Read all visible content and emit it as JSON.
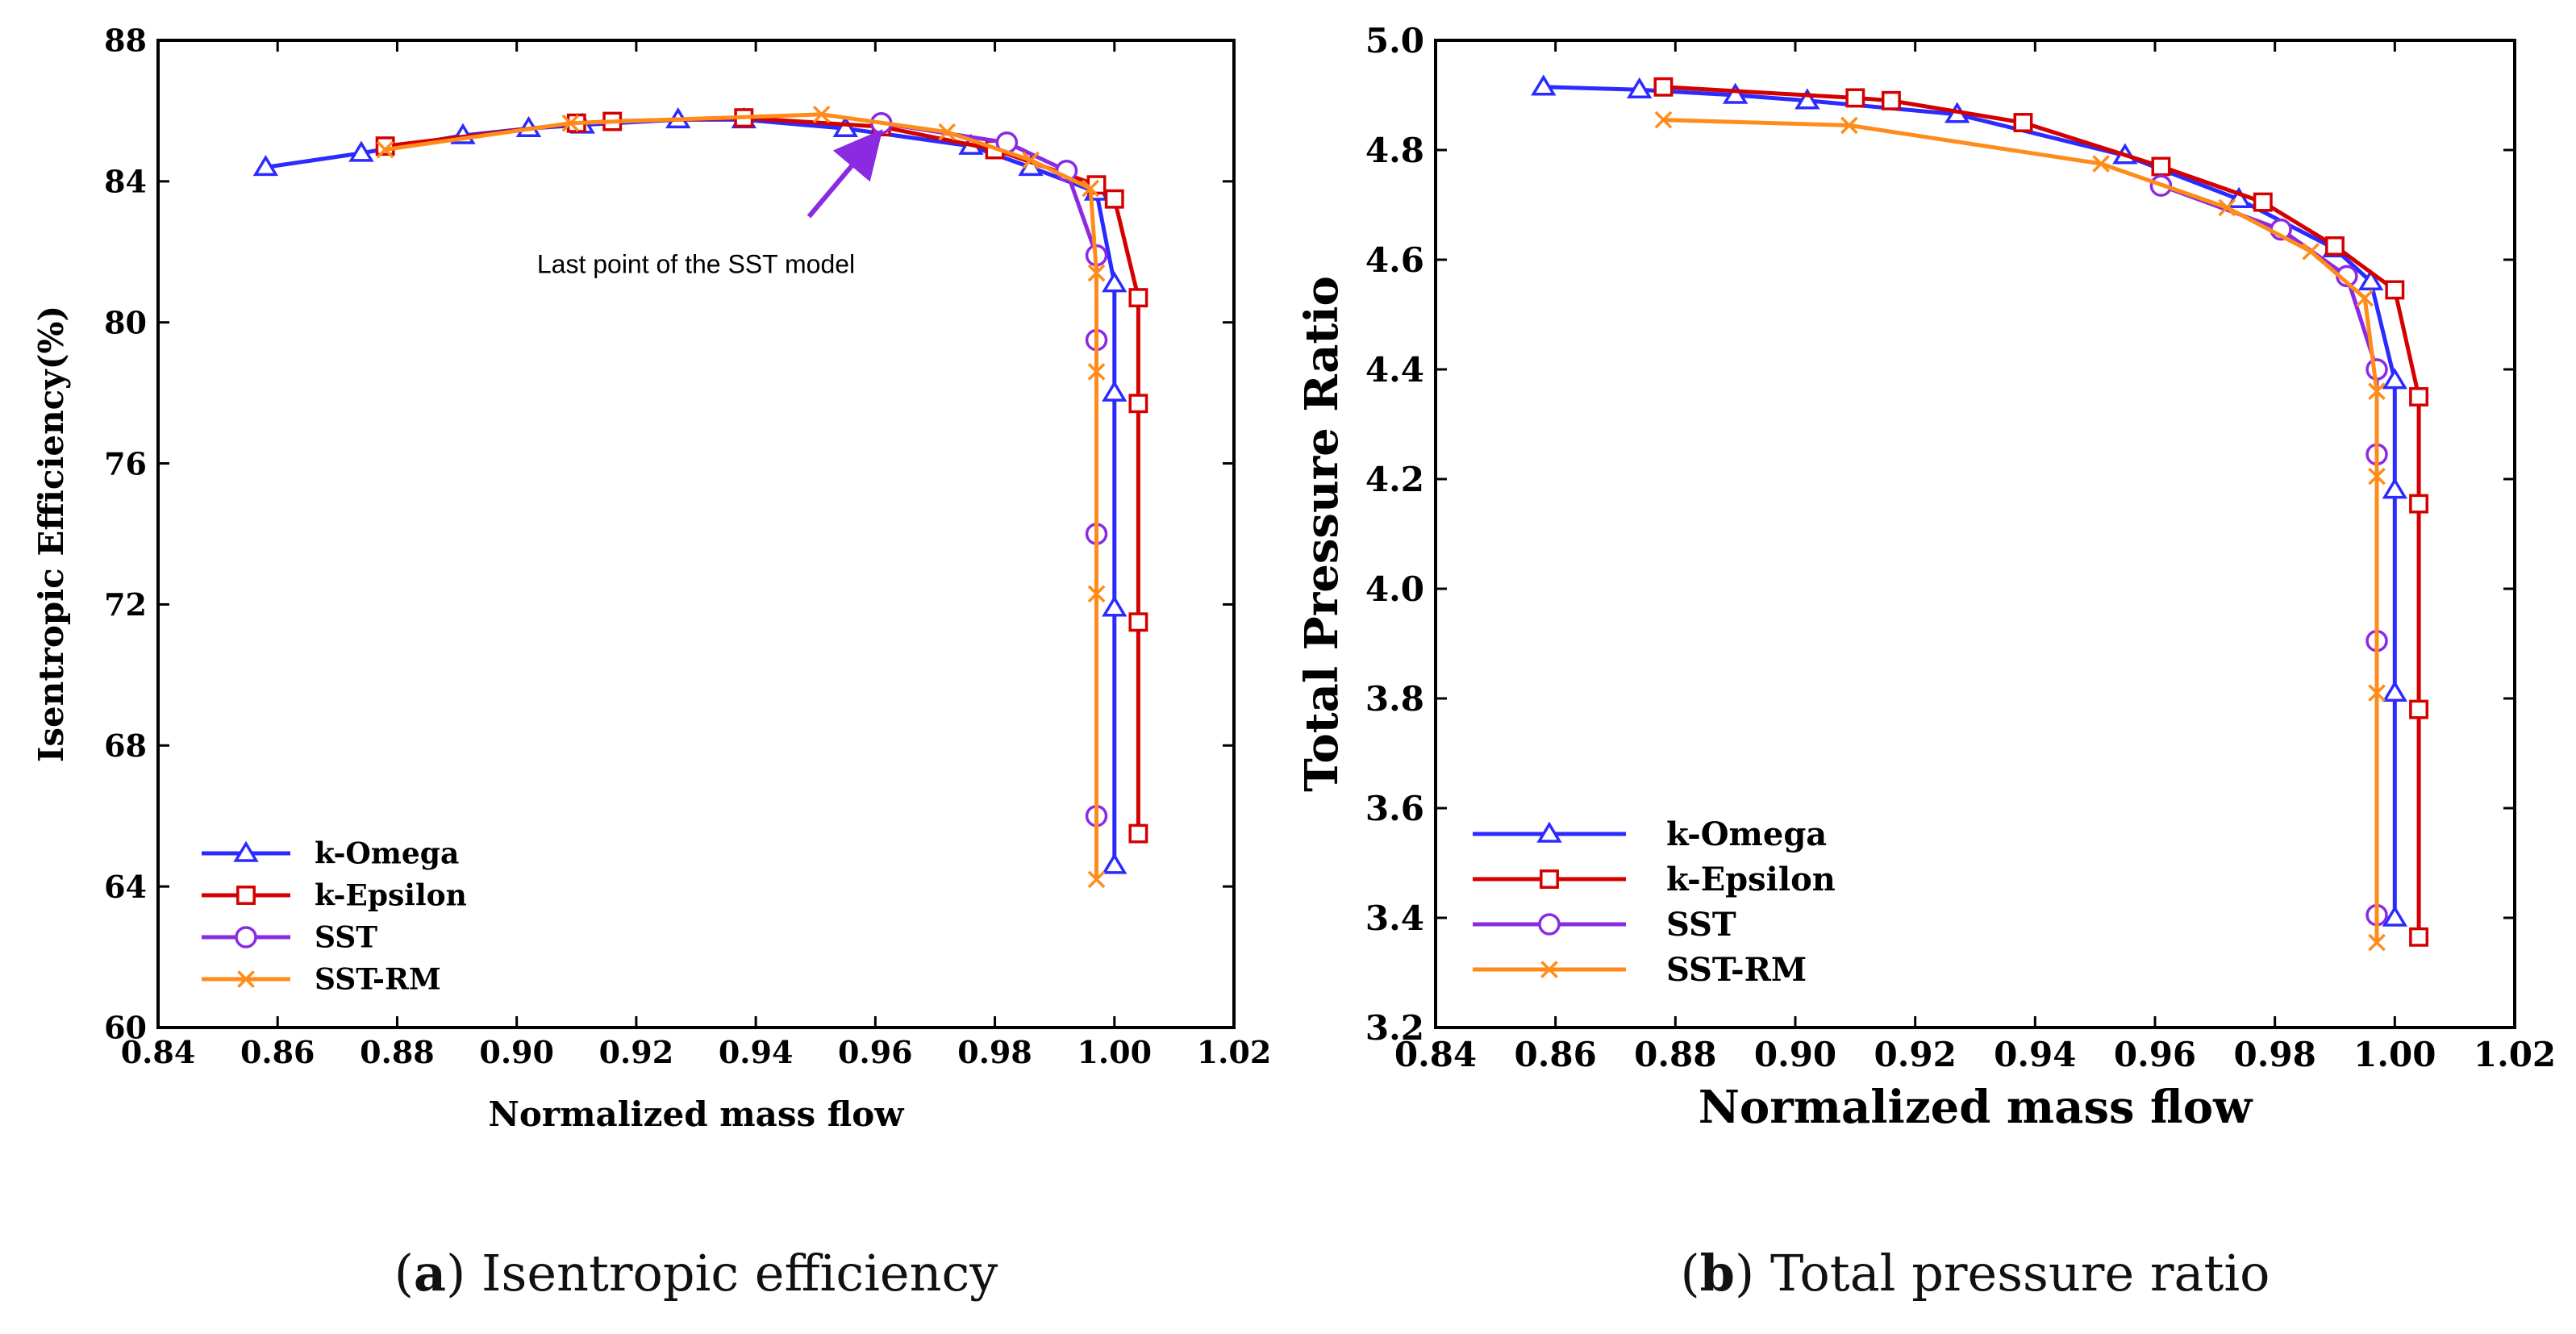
{
  "chart_data": [
    {
      "type": "line",
      "panel": "a",
      "caption_letter": "a",
      "caption_text": "Isentropic efficiency",
      "title": "",
      "xlabel": "Normalized mass flow",
      "ylabel": "Isentropic Efficiency(%)",
      "xlim": [
        0.84,
        1.02
      ],
      "ylim": [
        60,
        88
      ],
      "x_ticks": [
        "0.84",
        "0.86",
        "0.88",
        "0.90",
        "0.92",
        "0.94",
        "0.96",
        "0.98",
        "1.00",
        "1.02"
      ],
      "y_ticks": [
        "60",
        "64",
        "68",
        "72",
        "76",
        "80",
        "84",
        "88"
      ],
      "annotation": {
        "text": "Last point of the SST model",
        "target": [
          0.961,
          85.5
        ],
        "label_anchor": [
          0.93,
          81.4
        ]
      },
      "series": [
        {
          "name": "k-Omega",
          "color": "#2b2bff",
          "marker": "triangle",
          "points": [
            [
              0.858,
              84.4
            ],
            [
              0.874,
              84.8
            ],
            [
              0.891,
              85.3
            ],
            [
              0.902,
              85.5
            ],
            [
              0.911,
              85.6
            ],
            [
              0.927,
              85.75
            ],
            [
              0.938,
              85.75
            ],
            [
              0.955,
              85.5
            ],
            [
              0.976,
              85.0
            ],
            [
              0.986,
              84.4
            ],
            [
              0.997,
              83.7
            ],
            [
              1.0,
              81.1
            ],
            [
              1.0,
              78.0
            ],
            [
              1.0,
              71.9
            ],
            [
              1.0,
              64.6
            ]
          ]
        },
        {
          "name": "k-Epsilon",
          "color": "#d40000",
          "marker": "square",
          "points": [
            [
              0.878,
              85.0
            ],
            [
              0.91,
              85.65
            ],
            [
              0.916,
              85.7
            ],
            [
              0.938,
              85.8
            ],
            [
              0.961,
              85.55
            ],
            [
              0.98,
              84.9
            ],
            [
              0.997,
              83.9
            ],
            [
              1.0,
              83.5
            ],
            [
              1.004,
              80.7
            ],
            [
              1.004,
              77.7
            ],
            [
              1.004,
              71.5
            ],
            [
              1.004,
              65.5
            ]
          ]
        },
        {
          "name": "SST",
          "color": "#8a2be2",
          "marker": "circle",
          "points": [
            [
              0.961,
              85.65
            ],
            [
              0.982,
              85.1
            ],
            [
              0.992,
              84.3
            ],
            [
              0.997,
              81.9
            ],
            [
              0.997,
              79.5
            ],
            [
              0.997,
              74.0
            ],
            [
              0.997,
              66.0
            ]
          ]
        },
        {
          "name": "SST-RM",
          "color": "#ff8c1a",
          "marker": "x",
          "points": [
            [
              0.878,
              84.9
            ],
            [
              0.909,
              85.65
            ],
            [
              0.951,
              85.9
            ],
            [
              0.972,
              85.4
            ],
            [
              0.986,
              84.6
            ],
            [
              0.996,
              83.8
            ],
            [
              0.997,
              81.4
            ],
            [
              0.997,
              78.6
            ],
            [
              0.997,
              72.3
            ],
            [
              0.997,
              64.2
            ]
          ]
        }
      ]
    },
    {
      "type": "line",
      "panel": "b",
      "caption_letter": "b",
      "caption_text": "Total pressure ratio",
      "title": "",
      "xlabel": "Normalized mass flow",
      "ylabel": "Total Pressure Ratio",
      "xlim": [
        0.84,
        1.02
      ],
      "ylim": [
        3.2,
        5.0
      ],
      "x_ticks": [
        "0.84",
        "0.86",
        "0.88",
        "0.90",
        "0.92",
        "0.94",
        "0.96",
        "0.98",
        "1.00",
        "1.02"
      ],
      "y_ticks": [
        "3.2",
        "3.4",
        "3.6",
        "3.8",
        "4.0",
        "4.2",
        "4.4",
        "4.6",
        "4.8",
        "5.0"
      ],
      "series": [
        {
          "name": "k-Omega",
          "color": "#2b2bff",
          "marker": "triangle",
          "points": [
            [
              0.858,
              4.915
            ],
            [
              0.874,
              4.91
            ],
            [
              0.89,
              4.9
            ],
            [
              0.902,
              4.89
            ],
            [
              0.927,
              4.865
            ],
            [
              0.955,
              4.79
            ],
            [
              0.974,
              4.71
            ],
            [
              0.99,
              4.62
            ],
            [
              0.996,
              4.56
            ],
            [
              1.0,
              4.38
            ],
            [
              1.0,
              4.18
            ],
            [
              1.0,
              3.81
            ],
            [
              1.0,
              3.4
            ]
          ]
        },
        {
          "name": "k-Epsilon",
          "color": "#d40000",
          "marker": "square",
          "points": [
            [
              0.878,
              4.915
            ],
            [
              0.91,
              4.895
            ],
            [
              0.916,
              4.89
            ],
            [
              0.938,
              4.85
            ],
            [
              0.961,
              4.77
            ],
            [
              0.978,
              4.705
            ],
            [
              0.99,
              4.625
            ],
            [
              1.0,
              4.545
            ],
            [
              1.004,
              4.35
            ],
            [
              1.004,
              4.155
            ],
            [
              1.004,
              3.78
            ],
            [
              1.004,
              3.365
            ]
          ]
        },
        {
          "name": "SST",
          "color": "#8a2be2",
          "marker": "circle",
          "points": [
            [
              0.961,
              4.735
            ],
            [
              0.981,
              4.655
            ],
            [
              0.992,
              4.57
            ],
            [
              0.997,
              4.4
            ],
            [
              0.997,
              4.245
            ],
            [
              0.997,
              3.905
            ],
            [
              0.997,
              3.405
            ]
          ]
        },
        {
          "name": "SST-RM",
          "color": "#ff8c1a",
          "marker": "x",
          "points": [
            [
              0.878,
              4.855
            ],
            [
              0.909,
              4.845
            ],
            [
              0.951,
              4.775
            ],
            [
              0.972,
              4.695
            ],
            [
              0.986,
              4.615
            ],
            [
              0.995,
              4.53
            ],
            [
              0.997,
              4.36
            ],
            [
              0.997,
              4.205
            ],
            [
              0.997,
              3.81
            ],
            [
              0.997,
              3.355
            ]
          ]
        }
      ]
    }
  ]
}
